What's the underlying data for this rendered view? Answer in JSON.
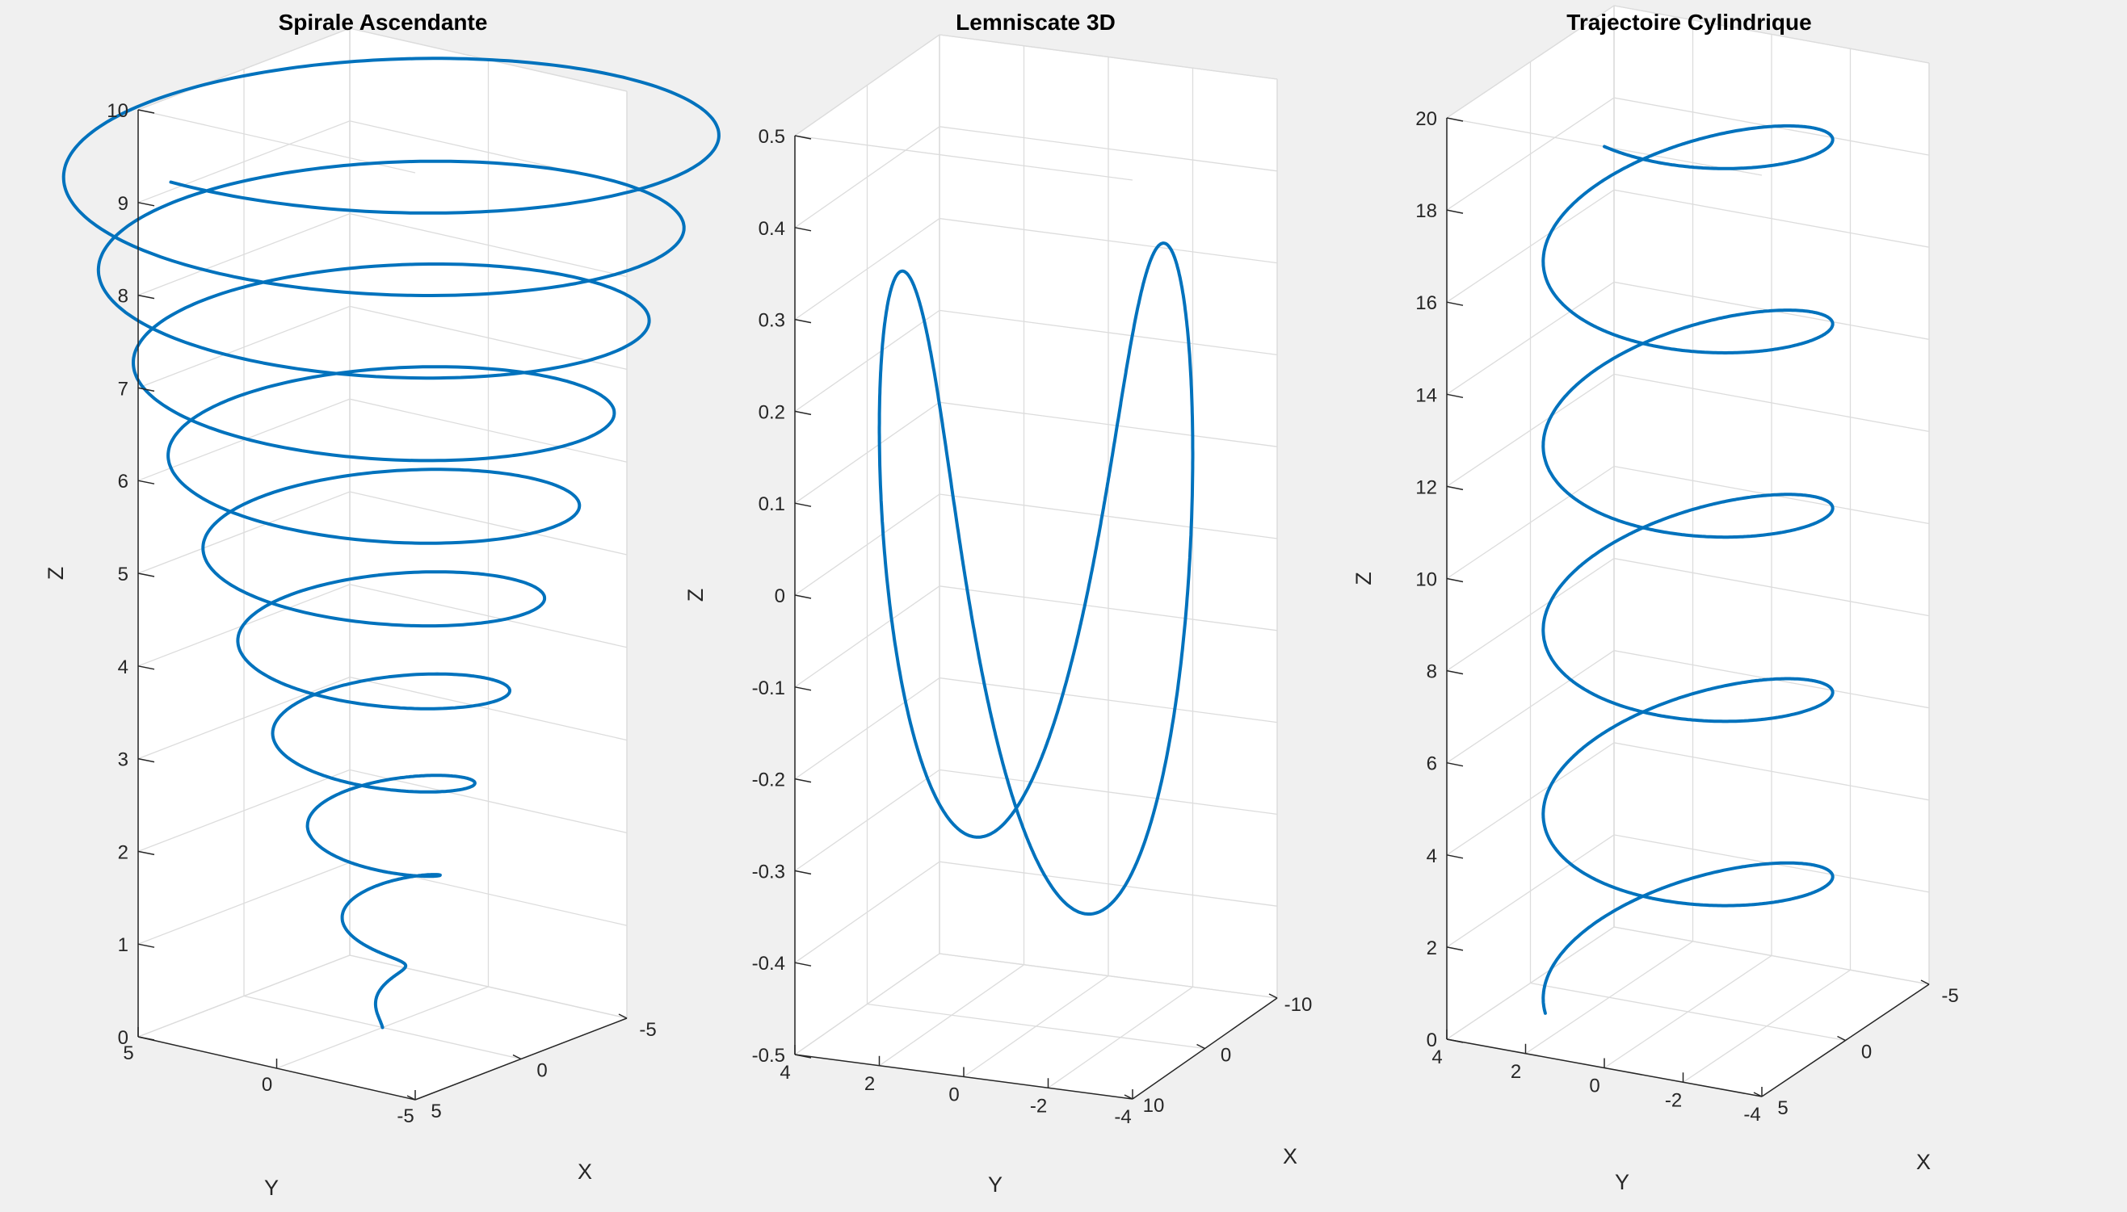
{
  "colors": {
    "figure_bg": "#f0f0f0",
    "axes_bg": "#ffffff",
    "line": "#0072bd",
    "grid": "#dcdcdc",
    "axis": "#262626"
  },
  "chart_data": [
    {
      "type": "line",
      "title": "Spirale Ascendante",
      "xlabel": "X",
      "ylabel": "Y",
      "zlabel": "Z",
      "xlim": [
        -5,
        5
      ],
      "ylim": [
        -5,
        5
      ],
      "zlim": [
        0,
        10
      ],
      "x_ticks": [
        "-5",
        "0",
        "5"
      ],
      "y_ticks": [
        "-5",
        "0",
        "5"
      ],
      "z_ticks": [
        "0",
        "1",
        "2",
        "3",
        "4",
        "5",
        "6",
        "7",
        "8",
        "9",
        "10"
      ],
      "grid": true,
      "series": [
        {
          "equation": "x = (t/2π)·cos t, y = (t/2π)·sin t, z = t/(2π)",
          "t_range": "0 to 10·2π"
        }
      ]
    },
    {
      "type": "line",
      "title": "Lemniscate 3D",
      "xlabel": "X",
      "ylabel": "Y",
      "zlabel": "Z",
      "xlim": [
        -10,
        10
      ],
      "ylim": [
        -4,
        4
      ],
      "zlim": [
        -0.5,
        0.5
      ],
      "x_ticks": [
        "-10",
        "0",
        "10"
      ],
      "y_ticks": [
        "-4",
        "-2",
        "0",
        "2",
        "4"
      ],
      "z_ticks": [
        "-0.5",
        "-0.4",
        "-0.3",
        "-0.2",
        "-0.1",
        "0",
        "0.1",
        "0.2",
        "0.3",
        "0.4",
        "0.5"
      ],
      "grid": true,
      "series": [
        {
          "equation": "Bernoulli lemniscate in the y-z plane, slight x variation",
          "t_range": "0 to 2π"
        }
      ]
    },
    {
      "type": "line",
      "title": "Trajectoire Cylindrique",
      "xlabel": "X",
      "ylabel": "Y",
      "zlabel": "Z",
      "xlim": [
        -5,
        5
      ],
      "ylim": [
        -4,
        4
      ],
      "zlim": [
        0,
        20
      ],
      "x_ticks": [
        "-5",
        "0",
        "5"
      ],
      "y_ticks": [
        "-4",
        "-2",
        "0",
        "2",
        "4"
      ],
      "z_ticks": [
        "0",
        "2",
        "4",
        "6",
        "8",
        "10",
        "12",
        "14",
        "16",
        "18",
        "20"
      ],
      "grid": true,
      "series": [
        {
          "equation": "x = 5·cos t, y = 3·sin t, z = 2t/π",
          "t_range": "π/4 to 10π"
        }
      ]
    }
  ]
}
